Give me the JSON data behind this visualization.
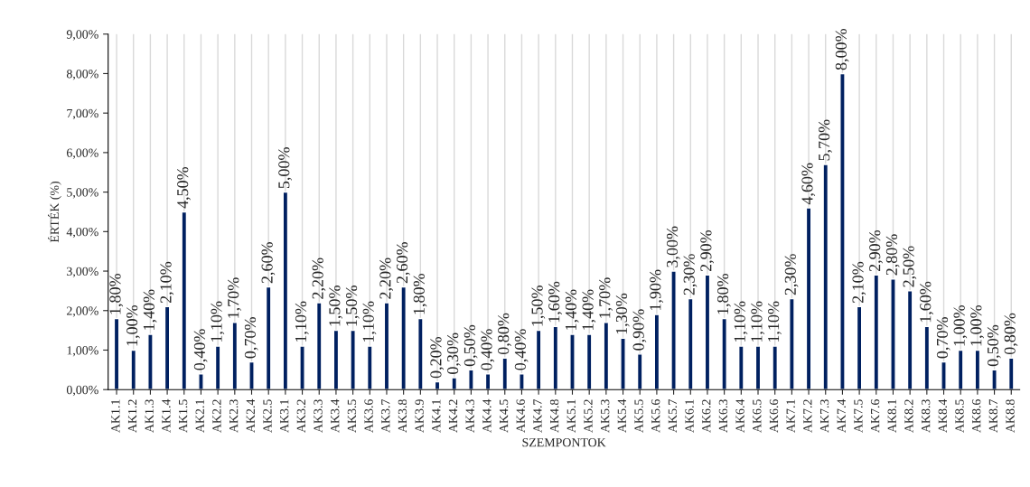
{
  "chart_data": {
    "type": "bar",
    "xlabel": "SZEMPONTOK",
    "ylabel": "ÉRTÉK (%)",
    "categories": [
      "AK1.1",
      "AK1.2",
      "AK1.3",
      "AK1.4",
      "AK1.5",
      "AK2.1",
      "AK2.2",
      "AK2.3",
      "AK2.4",
      "AK2.5",
      "AK3.1",
      "AK3.2",
      "AK3.3",
      "AK3.4",
      "AK3.5",
      "AK3.6",
      "AK3.7",
      "AK3.8",
      "AK3.9",
      "AK4.1",
      "AK4.2",
      "AK4.3",
      "AK4.4",
      "AK4.5",
      "AK4.6",
      "AK4.7",
      "AK4.8",
      "AK5.1",
      "AK5.2",
      "AK5.3",
      "AK5.4",
      "AK5.5",
      "AK5.6",
      "AK5.7",
      "AK6.1",
      "AK6.2",
      "AK6.3",
      "AK6.4",
      "AK6.5",
      "AK6.6",
      "AK7.1",
      "AK7.2",
      "AK7.3",
      "AK7.4",
      "AK7.5",
      "AK7.6",
      "AK8.1",
      "AK8.2",
      "AK8.3",
      "AK8.4",
      "AK8.5",
      "AK8.6",
      "AK8.7",
      "AK8.8"
    ],
    "values": [
      1.8,
      1.0,
      1.4,
      2.1,
      4.5,
      0.4,
      1.1,
      1.7,
      0.7,
      2.6,
      5.0,
      1.1,
      2.2,
      1.5,
      1.5,
      1.1,
      2.2,
      2.6,
      1.8,
      0.2,
      0.3,
      0.5,
      0.4,
      0.8,
      0.4,
      1.5,
      1.6,
      1.4,
      1.4,
      1.7,
      1.3,
      0.9,
      1.9,
      3.0,
      2.3,
      2.9,
      1.8,
      1.1,
      1.1,
      1.1,
      2.3,
      4.6,
      5.7,
      8.0,
      2.1,
      2.9,
      2.8,
      2.5,
      1.6,
      0.7,
      1.0,
      1.0,
      0.5,
      0.8
    ],
    "value_labels": [
      "1,80%",
      "1,00%",
      "1,40%",
      "2,10%",
      "4,50%",
      "0,40%",
      "1,10%",
      "1,70%",
      "0,70%",
      "2,60%",
      "5,00%",
      "1,10%",
      "2,20%",
      "1,50%",
      "1,50%",
      "1,10%",
      "2,20%",
      "2,60%",
      "1,80%",
      "0,20%",
      "0,30%",
      "0,50%",
      "0,40%",
      "0,80%",
      "0,40%",
      "1,50%",
      "1,60%",
      "1,40%",
      "1,40%",
      "1,70%",
      "1,30%",
      "0,90%",
      "1,90%",
      "3,00%",
      "2,30%",
      "2,90%",
      "1,80%",
      "1,10%",
      "1,10%",
      "1,10%",
      "2,30%",
      "4,60%",
      "5,70%",
      "8,00%",
      "2,10%",
      "2,90%",
      "2,80%",
      "2,50%",
      "1,60%",
      "0,70%",
      "1,00%",
      "1,00%",
      "0,50%",
      "0,80%"
    ],
    "color": "#002060",
    "ylim": [
      0,
      9
    ],
    "yticks": [
      {
        "value": 0,
        "label": "0,00%"
      },
      {
        "value": 1,
        "label": "1,00%"
      },
      {
        "value": 2,
        "label": "2,00%"
      },
      {
        "value": 3,
        "label": "3,00%"
      },
      {
        "value": 4,
        "label": "4,00%"
      },
      {
        "value": 5,
        "label": "5,00%"
      },
      {
        "value": 6,
        "label": "6,00%"
      },
      {
        "value": 7,
        "label": "7,00%"
      },
      {
        "value": 8,
        "label": "8,00%"
      },
      {
        "value": 9,
        "label": "9,00%"
      }
    ],
    "grid": "x",
    "legend": false
  }
}
